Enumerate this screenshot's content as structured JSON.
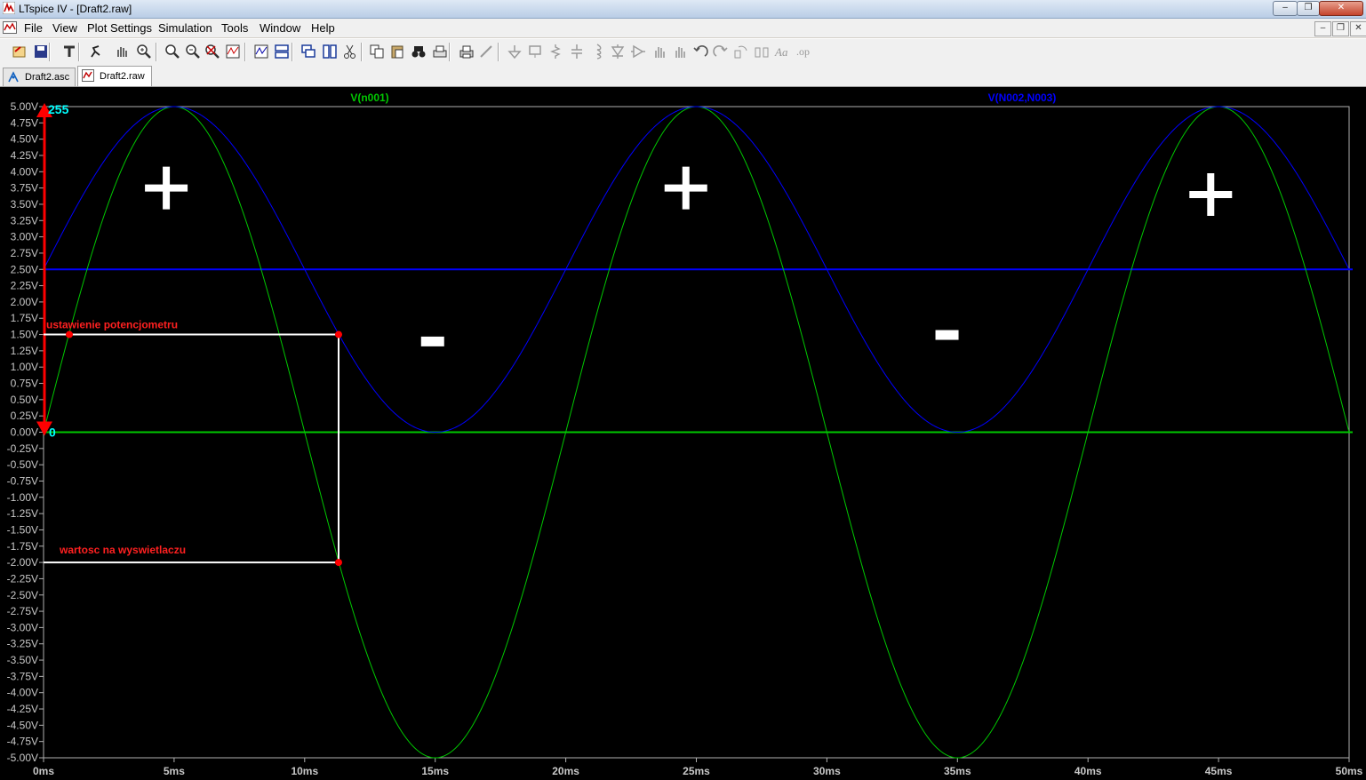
{
  "window": {
    "title": "LTspice IV - [Draft2.raw]",
    "caption_buttons": [
      "‒",
      "❐",
      "✕"
    ],
    "mdi_buttons": [
      "‒",
      "❐",
      "✕"
    ]
  },
  "menu": {
    "items": [
      {
        "label": "File"
      },
      {
        "label": "View"
      },
      {
        "label": "Plot Settings"
      },
      {
        "label": "Simulation"
      },
      {
        "label": "Tools"
      },
      {
        "label": "Window"
      },
      {
        "label": "Help"
      }
    ]
  },
  "toolbar": {
    "buttons": [
      "open-icon",
      "save-icon",
      "control-panel-icon",
      "run-icon",
      "pan-icon",
      "zoom-in-icon",
      "zoom-area-icon",
      "zoom-out-icon",
      "zoom-cancel-icon",
      "autorange-icon",
      "zoom-fit-icon",
      "tile-horizontal-icon",
      "cascade-icon",
      "tile-vertical-icon",
      "cut-icon",
      "copy-icon",
      "paste-icon",
      "find-icon",
      "print-preview-icon",
      "print-icon",
      "wire-icon",
      "ground-icon",
      "label-net-icon",
      "resistor-icon",
      "capacitor-icon",
      "inductor-icon",
      "diode-icon",
      "component-icon",
      "move-icon",
      "drag-icon",
      "undo-icon",
      "redo-icon",
      "rotate-icon",
      "mirror-icon",
      "text-icon",
      "spice-directive-icon"
    ]
  },
  "tabs": [
    {
      "label": "Draft2.asc",
      "icon": "schematic-icon",
      "active": false
    },
    {
      "label": "Draft2.raw",
      "icon": "waveform-icon",
      "active": true
    }
  ],
  "chart_data": {
    "type": "line",
    "title": "",
    "xlabel": "",
    "ylabel": "",
    "xlim": [
      0,
      50
    ],
    "ylim": [
      -5,
      5
    ],
    "x_unit": "ms",
    "y_unit": "V",
    "grid": false,
    "x_ticks": [
      "0ms",
      "5ms",
      "10ms",
      "15ms",
      "20ms",
      "25ms",
      "30ms",
      "35ms",
      "40ms",
      "45ms",
      "50ms"
    ],
    "y_ticks": [
      "5.00V",
      "4.75V",
      "4.50V",
      "4.25V",
      "4.00V",
      "3.75V",
      "3.50V",
      "3.25V",
      "3.00V",
      "2.75V",
      "2.50V",
      "2.25V",
      "2.00V",
      "1.75V",
      "1.50V",
      "1.25V",
      "1.00V",
      "0.75V",
      "0.50V",
      "0.25V",
      "0.00V",
      "-0.25V",
      "-0.50V",
      "-0.75V",
      "-1.00V",
      "-1.25V",
      "-1.50V",
      "-1.75V",
      "-2.00V",
      "-2.25V",
      "-2.50V",
      "-2.75V",
      "-3.00V",
      "-3.25V",
      "-3.50V",
      "-3.75V",
      "-4.00V",
      "-4.25V",
      "-4.50V",
      "-4.75V",
      "-5.00V"
    ],
    "series": [
      {
        "name": "V(n001)",
        "color": "#00c800",
        "x": [
          0,
          1.25,
          2.5,
          3.75,
          5,
          6.25,
          7.5,
          8.75,
          10,
          11.25,
          12.5,
          13.75,
          15,
          16.25,
          17.5,
          18.75,
          20,
          21.25,
          22.5,
          23.75,
          25,
          26.25,
          27.5,
          28.75,
          30,
          31.25,
          32.5,
          33.75,
          35,
          36.25,
          37.5,
          38.75,
          40,
          41.25,
          42.5,
          43.75,
          45,
          46.25,
          47.5,
          48.75,
          50
        ],
        "values": [
          0,
          1.91,
          3.54,
          4.62,
          5,
          4.62,
          3.54,
          1.91,
          0,
          -1.91,
          -3.54,
          -4.62,
          -5,
          -4.62,
          -3.54,
          -1.91,
          0,
          1.91,
          3.54,
          4.62,
          5,
          4.62,
          3.54,
          1.91,
          0,
          -1.91,
          -3.54,
          -4.62,
          -5,
          -4.62,
          -3.54,
          -1.91,
          0,
          1.91,
          3.54,
          4.62,
          5,
          4.62,
          3.54,
          1.91,
          0
        ]
      },
      {
        "name": "V(N002,N003)",
        "color": "#0000ff",
        "x": [
          0,
          1.25,
          2.5,
          3.75,
          5,
          6.25,
          7.5,
          8.75,
          10,
          11.25,
          12.5,
          13.75,
          15,
          16.25,
          17.5,
          18.75,
          20,
          21.25,
          22.5,
          23.75,
          25,
          26.25,
          27.5,
          28.75,
          30,
          31.25,
          32.5,
          33.75,
          35,
          36.25,
          37.5,
          38.75,
          40,
          41.25,
          42.5,
          43.75,
          45,
          46.25,
          47.5,
          48.75,
          50
        ],
        "values": [
          2.5,
          3.46,
          4.27,
          4.81,
          5,
          4.81,
          4.27,
          3.46,
          2.5,
          1.54,
          0.73,
          0.19,
          0,
          0.19,
          0.73,
          1.54,
          2.5,
          3.46,
          4.27,
          4.81,
          5,
          4.81,
          4.27,
          3.46,
          2.5,
          1.54,
          0.73,
          0.19,
          0,
          0.19,
          0.73,
          1.54,
          2.5,
          3.46,
          4.27,
          4.81,
          5,
          4.81,
          4.27,
          3.46,
          2.5
        ]
      }
    ],
    "reference_lines": [
      {
        "y": 2.5,
        "color": "#0000ff"
      },
      {
        "y": 0,
        "color": "#00c800"
      }
    ],
    "annotations": {
      "cursor_top_label": "255",
      "cursor_bottom_label": "0",
      "potentiometer_label": "ustawienie potencjometru",
      "display_value_label": "wartosc na wyswietlaczu",
      "potentiometer_point": {
        "x": 11.3,
        "y": 1.5
      },
      "display_point": {
        "x": 11.3,
        "y": -2.0
      },
      "plus_signs": [
        {
          "x": 4.7,
          "y": 3.75
        },
        {
          "x": 24.6,
          "y": 3.75
        },
        {
          "x": 44.7,
          "y": 3.65
        }
      ],
      "minus_signs": [
        {
          "x": 14.9,
          "y": 1.4
        },
        {
          "x": 34.6,
          "y": 1.5
        }
      ]
    }
  }
}
